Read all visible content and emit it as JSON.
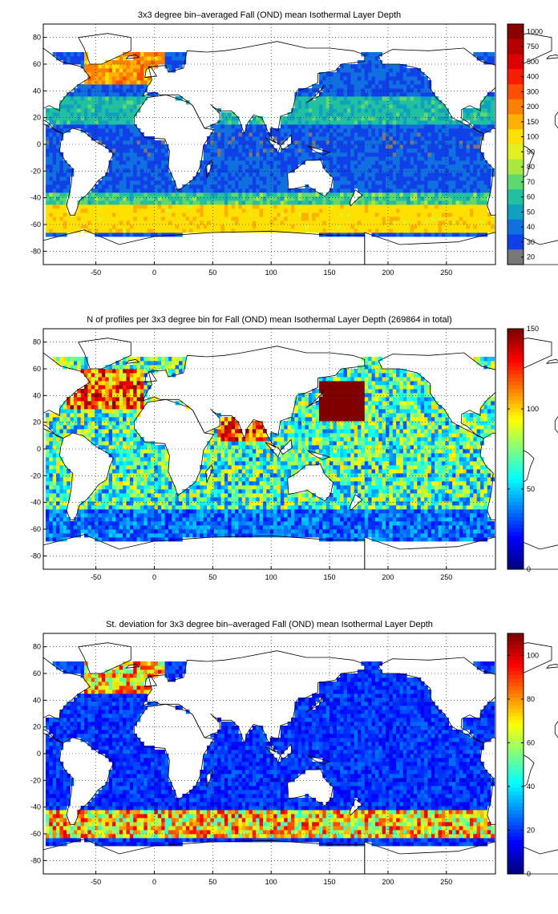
{
  "chart_data": [
    {
      "type": "heatmap",
      "title": "3x3 degree bin–averaged Fall (OND) mean Isothermal Layer Depth",
      "xlim": [
        -95,
        292
      ],
      "ylim": [
        -90,
        90
      ],
      "xticks": [
        -50,
        0,
        50,
        100,
        150,
        200,
        250
      ],
      "yticks": [
        80,
        60,
        40,
        20,
        0,
        -20,
        -40,
        -60,
        -80
      ],
      "grid": "dotted",
      "colorbar": {
        "type": "discrete",
        "labels": [
          "1000",
          "750",
          "500",
          "400",
          "300",
          "200",
          "150",
          "100",
          "90",
          "80",
          "70",
          "60",
          "50",
          "40",
          "30",
          "20"
        ],
        "colors": [
          "#8B0000",
          "#B40000",
          "#DD0000",
          "#FF1A00",
          "#FF4E00",
          "#FF8000",
          "#FFB000",
          "#FFE000",
          "#E0F020",
          "#A8E840",
          "#60D870",
          "#20C0A0",
          "#10A0C0",
          "#1070E0",
          "#1040E8",
          "#787878"
        ],
        "note": "top swatch extends above 1000 label"
      },
      "mode": "ild"
    },
    {
      "type": "heatmap",
      "title": "N of profiles per 3x3 degree bin for Fall (OND) mean Isothermal Layer Depth  (269864 in total)",
      "xlim": [
        -95,
        292
      ],
      "ylim": [
        -90,
        90
      ],
      "xticks": [
        -50,
        0,
        50,
        100,
        150,
        200,
        250
      ],
      "yticks": [
        80,
        60,
        40,
        20,
        0,
        -20,
        -40,
        -60,
        -80
      ],
      "grid": "dotted",
      "colorbar": {
        "type": "continuous",
        "range": [
          0,
          150
        ],
        "ticks": [
          150,
          100,
          50,
          0
        ],
        "colormap": "jet"
      },
      "mode": "count"
    },
    {
      "type": "heatmap",
      "title": "St. deviation for 3x3 degree bin–averaged Fall (OND) mean Isothermal Layer Depth",
      "xlim": [
        -95,
        292
      ],
      "ylim": [
        -90,
        90
      ],
      "xticks": [
        -50,
        0,
        50,
        100,
        150,
        200,
        250
      ],
      "yticks": [
        80,
        60,
        40,
        20,
        0,
        -20,
        -40,
        -60,
        -80
      ],
      "grid": "dotted",
      "colorbar": {
        "type": "continuous",
        "range": [
          0,
          110
        ],
        "ticks": [
          100,
          80,
          60,
          40,
          20,
          0
        ],
        "colormap": "jet"
      },
      "mode": "std"
    }
  ]
}
